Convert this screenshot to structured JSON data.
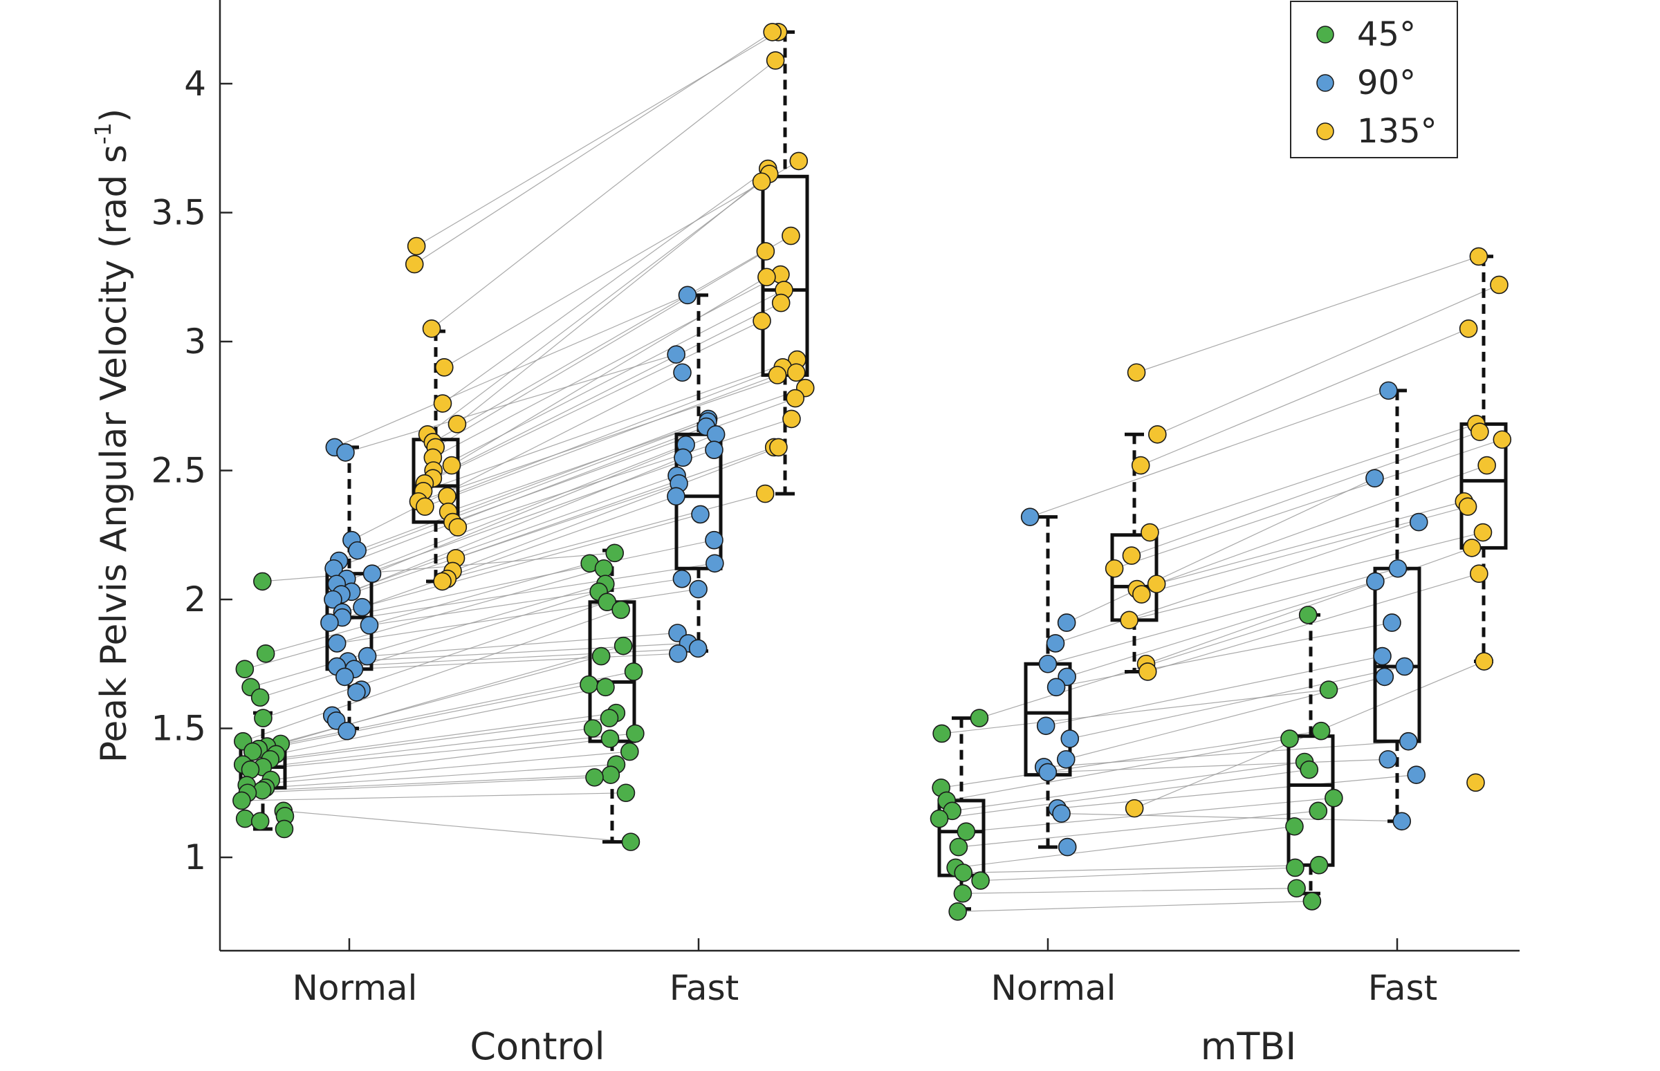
{
  "chart_data": {
    "type": "scatter",
    "subtype": "paired box plot with jittered points",
    "title": "",
    "ylabel": "Peak Pelvis Angular Velocity (rad s-1)",
    "ylabel_parts": {
      "main": "Peak Pelvis Angular Velocity (rad s",
      "sup": "-1",
      "close": ")"
    },
    "ylim": [
      0.62,
      4.3
    ],
    "yticks": [
      1,
      1.5,
      2,
      2.5,
      3,
      3.5,
      4
    ],
    "ytick_labels": [
      "1",
      "1.5",
      "2",
      "2.5",
      "3",
      "3.5",
      "4"
    ],
    "groups": [
      {
        "name": "Control",
        "conditions": [
          "Normal",
          "Fast"
        ]
      },
      {
        "name": "mTBI",
        "conditions": [
          "Normal",
          "Fast"
        ]
      }
    ],
    "xtick_labels": [
      "Normal",
      "Fast",
      "Normal",
      "Fast"
    ],
    "legend": {
      "position": "top-right",
      "entries": [
        {
          "label": "45°",
          "color": "#4daf4a"
        },
        {
          "label": "90°",
          "color": "#5b9bd5"
        },
        {
          "label": "135°",
          "color": "#f4c430"
        }
      ]
    },
    "grid": false,
    "series": [
      {
        "group": "Control",
        "condition": "Normal",
        "angle": "45°",
        "box": {
          "min": 1.11,
          "q1": 1.27,
          "median": 1.35,
          "q3": 1.43,
          "max": 1.56
        },
        "values": [
          2.07,
          1.79,
          1.73,
          1.66,
          1.62,
          1.54,
          1.45,
          1.44,
          1.43,
          1.42,
          1.41,
          1.4,
          1.38,
          1.36,
          1.35,
          1.34,
          1.3,
          1.28,
          1.27,
          1.26,
          1.25,
          1.22,
          1.18,
          1.16,
          1.15,
          1.14,
          1.11
        ]
      },
      {
        "group": "Control",
        "condition": "Normal",
        "angle": "90°",
        "box": {
          "min": 1.5,
          "q1": 1.73,
          "median": 1.93,
          "q3": 2.1,
          "max": 2.59
        },
        "values": [
          2.59,
          2.57,
          2.23,
          2.19,
          2.15,
          2.12,
          2.1,
          2.08,
          2.06,
          2.03,
          2.02,
          2.0,
          1.97,
          1.95,
          1.93,
          1.91,
          1.9,
          1.83,
          1.78,
          1.76,
          1.74,
          1.73,
          1.7,
          1.65,
          1.64,
          1.55,
          1.53,
          1.49
        ]
      },
      {
        "group": "Control",
        "condition": "Normal",
        "angle": "135°",
        "box": {
          "min": 2.07,
          "q1": 2.3,
          "median": 2.44,
          "q3": 2.62,
          "max": 3.04
        },
        "values": [
          3.37,
          3.3,
          3.05,
          2.9,
          2.76,
          2.68,
          2.64,
          2.61,
          2.59,
          2.55,
          2.52,
          2.5,
          2.47,
          2.45,
          2.42,
          2.4,
          2.38,
          2.36,
          2.34,
          2.3,
          2.28,
          2.16,
          2.11,
          2.08,
          2.07
        ]
      },
      {
        "group": "Control",
        "condition": "Fast",
        "angle": "45°",
        "box": {
          "min": 1.06,
          "q1": 1.45,
          "median": 1.68,
          "q3": 1.99,
          "max": 2.19
        },
        "values": [
          2.18,
          2.14,
          2.12,
          2.06,
          2.03,
          1.99,
          1.96,
          1.82,
          1.78,
          1.72,
          1.67,
          1.66,
          1.56,
          1.54,
          1.5,
          1.48,
          1.46,
          1.41,
          1.36,
          1.32,
          1.31,
          1.25,
          1.06
        ]
      },
      {
        "group": "Control",
        "condition": "Fast",
        "angle": "90°",
        "box": {
          "min": 1.8,
          "q1": 2.12,
          "median": 2.4,
          "q3": 2.64,
          "max": 3.18
        },
        "values": [
          3.18,
          2.95,
          2.88,
          2.7,
          2.69,
          2.67,
          2.64,
          2.6,
          2.58,
          2.55,
          2.48,
          2.45,
          2.4,
          2.33,
          2.23,
          2.14,
          2.08,
          2.04,
          1.87,
          1.83,
          1.81,
          1.79
        ]
      },
      {
        "group": "Control",
        "condition": "Fast",
        "angle": "135°",
        "box": {
          "min": 2.41,
          "q1": 2.87,
          "median": 3.2,
          "q3": 3.64,
          "max": 4.2
        },
        "values": [
          4.2,
          4.2,
          4.09,
          3.7,
          3.67,
          3.65,
          3.62,
          3.41,
          3.35,
          3.26,
          3.25,
          3.2,
          3.15,
          3.08,
          2.93,
          2.9,
          2.88,
          2.87,
          2.82,
          2.78,
          2.7,
          2.59,
          2.59,
          2.41
        ]
      },
      {
        "group": "mTBI",
        "condition": "Normal",
        "angle": "45°",
        "box": {
          "min": 0.8,
          "q1": 0.93,
          "median": 1.1,
          "q3": 1.22,
          "max": 1.54
        },
        "values": [
          1.54,
          1.48,
          1.27,
          1.22,
          1.18,
          1.15,
          1.1,
          1.04,
          0.96,
          0.94,
          0.91,
          0.86,
          0.79
        ]
      },
      {
        "group": "mTBI",
        "condition": "Normal",
        "angle": "90°",
        "box": {
          "min": 1.04,
          "q1": 1.32,
          "median": 1.56,
          "q3": 1.75,
          "max": 2.32
        },
        "values": [
          2.32,
          1.91,
          1.83,
          1.75,
          1.7,
          1.66,
          1.51,
          1.46,
          1.38,
          1.35,
          1.33,
          1.19,
          1.17,
          1.04
        ]
      },
      {
        "group": "mTBI",
        "condition": "Normal",
        "angle": "135°",
        "box": {
          "min": 1.72,
          "q1": 1.92,
          "median": 2.05,
          "q3": 2.25,
          "max": 2.64
        },
        "values": [
          2.88,
          2.64,
          2.52,
          2.26,
          2.17,
          2.12,
          2.06,
          2.04,
          2.02,
          1.92,
          1.75,
          1.72,
          1.19
        ]
      },
      {
        "group": "mTBI",
        "condition": "Fast",
        "angle": "45°",
        "box": {
          "min": 0.86,
          "q1": 0.97,
          "median": 1.28,
          "q3": 1.47,
          "max": 1.94
        },
        "values": [
          1.94,
          1.65,
          1.49,
          1.46,
          1.37,
          1.34,
          1.23,
          1.18,
          1.12,
          0.97,
          0.96,
          0.88,
          0.83
        ]
      },
      {
        "group": "mTBI",
        "condition": "Fast",
        "angle": "90°",
        "box": {
          "min": 1.14,
          "q1": 1.45,
          "median": 1.74,
          "q3": 2.12,
          "max": 2.81
        },
        "values": [
          2.81,
          2.47,
          2.3,
          2.12,
          2.07,
          1.91,
          1.78,
          1.74,
          1.7,
          1.45,
          1.38,
          1.32,
          1.14
        ]
      },
      {
        "group": "mTBI",
        "condition": "Fast",
        "angle": "135°",
        "box": {
          "min": 1.76,
          "q1": 2.2,
          "median": 2.46,
          "q3": 2.68,
          "max": 3.33
        },
        "values": [
          3.33,
          3.22,
          3.05,
          2.68,
          2.65,
          2.62,
          2.52,
          2.38,
          2.36,
          2.26,
          2.2,
          2.1,
          1.76,
          1.29
        ]
      }
    ]
  }
}
